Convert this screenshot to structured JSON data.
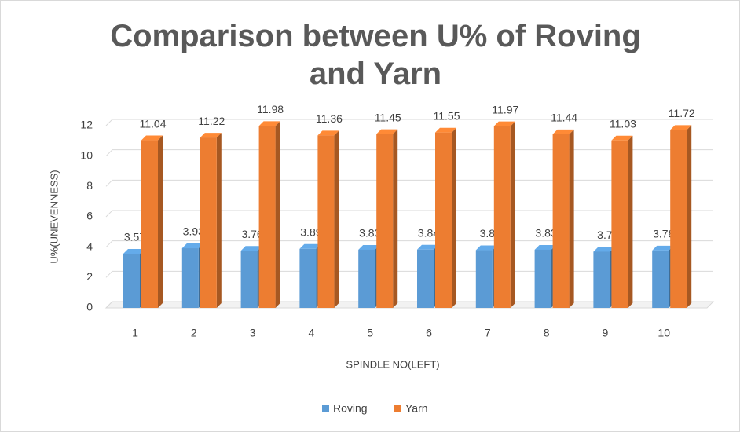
{
  "chart_data": {
    "type": "bar3d",
    "title": "Comparison between U% of Roving and Yarn",
    "x_label": "SPINDLE NO(LEFT)",
    "y_label": "U%(UNEVENNESS)",
    "categories": [
      "1",
      "2",
      "3",
      "4",
      "5",
      "6",
      "7",
      "8",
      "9",
      "10"
    ],
    "series": [
      {
        "name": "Roving",
        "color": "#5b9bd5",
        "values": [
          3.57,
          3.93,
          3.76,
          3.89,
          3.83,
          3.84,
          3.8,
          3.83,
          3.7,
          3.78
        ]
      },
      {
        "name": "Yarn",
        "color": "#ed7d31",
        "values": [
          11.04,
          11.22,
          11.98,
          11.36,
          11.45,
          11.55,
          11.97,
          11.44,
          11.03,
          11.72
        ]
      }
    ],
    "ylim": [
      0,
      12
    ],
    "yticks": [
      0,
      2,
      4,
      6,
      8,
      10,
      12
    ],
    "grid": true,
    "legend": "bottom"
  }
}
